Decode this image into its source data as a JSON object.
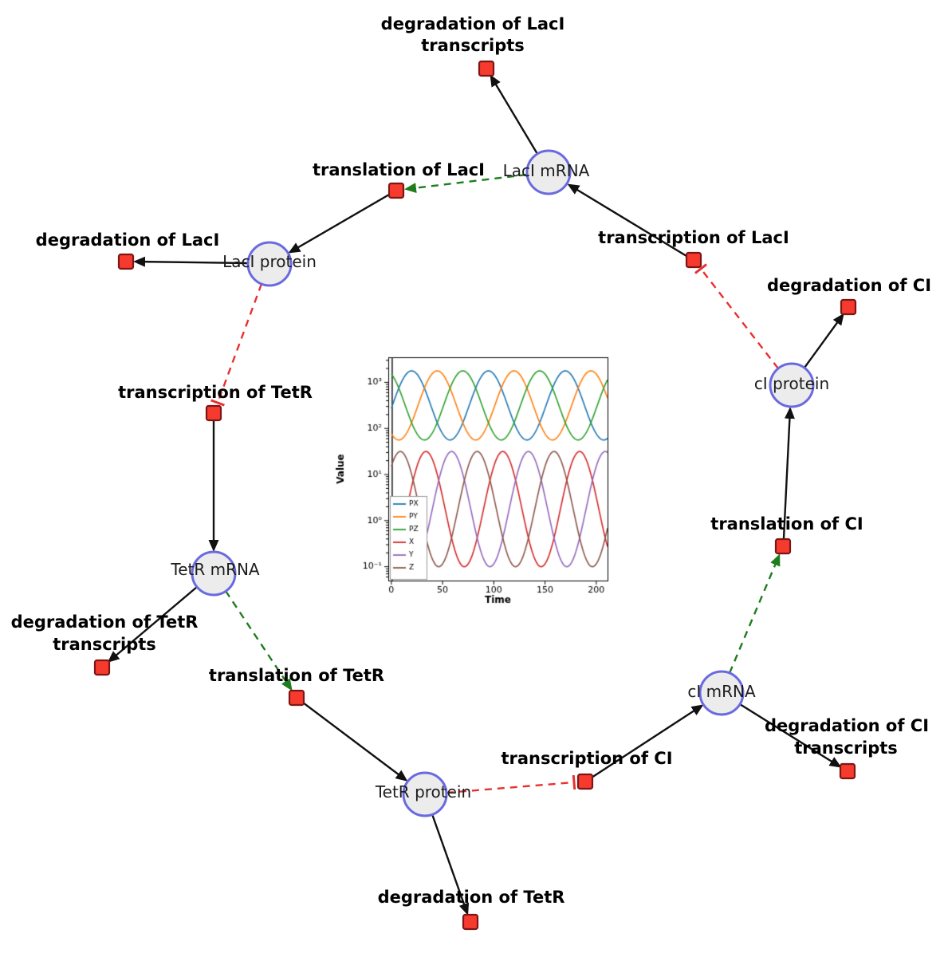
{
  "diagram": {
    "species": {
      "laci_mrna": {
        "label": "LacI mRNA"
      },
      "laci_protein": {
        "label": "LacI protein"
      },
      "tetr_mrna": {
        "label": "TetR mRNA"
      },
      "tetr_protein": {
        "label": "TetR protein"
      },
      "ci_mrna": {
        "label": "cI mRNA"
      },
      "ci_protein": {
        "label": "cI protein"
      }
    },
    "reactions": {
      "deg_laci_transcripts": {
        "line1": "degradation of LacI",
        "line2": "transcripts"
      },
      "translation_laci": {
        "line1": "translation of LacI"
      },
      "transcription_laci": {
        "line1": "transcription of LacI"
      },
      "deg_laci": {
        "line1": "degradation of LacI"
      },
      "transcription_tetr": {
        "line1": "transcription of TetR"
      },
      "deg_tetr_transcripts": {
        "line1": "degradation of TetR",
        "line2": "transcripts"
      },
      "translation_tetr": {
        "line1": "translation of TetR"
      },
      "deg_tetr": {
        "line1": "degradation of TetR"
      },
      "transcription_ci": {
        "line1": "transcription of CI"
      },
      "deg_ci_transcripts": {
        "line1": "degradation of CI",
        "line2": "transcripts"
      },
      "translation_ci": {
        "line1": "translation of CI"
      },
      "deg_ci": {
        "line1": "degradation of CI"
      }
    },
    "colors": {
      "species_fill": "#ececec",
      "species_stroke": "#6a6ae0",
      "reaction_fill": "#f63b2e",
      "reaction_stroke": "#7e1515",
      "edge_black": "#111111",
      "edge_modifier_green": "#1e7d1e",
      "edge_inhibition_red": "#e83030"
    }
  },
  "chart_data": {
    "type": "line",
    "title": "",
    "xlabel": "Time",
    "ylabel": "Value",
    "x_ticks": [
      0,
      50,
      100,
      150,
      200
    ],
    "x_tick_labels": [
      "0",
      "50",
      "100",
      "150",
      "200"
    ],
    "y_ticks": [
      0.1,
      1,
      10,
      100,
      1000
    ],
    "y_tick_labels": [
      "10⁻¹",
      "10⁰",
      "10¹",
      "10²",
      "10³"
    ],
    "y_scale": "log",
    "xlim": [
      -3,
      211
    ],
    "ylim": [
      0.05,
      3500
    ],
    "legend_position": "lower left",
    "grid": false,
    "oscillation_period": 75,
    "initial_spike_at_x": 0,
    "series": [
      {
        "name": "PX",
        "color": "#1f77b4",
        "log_center": 2.5,
        "log_amplitude": 0.75,
        "phase": 1,
        "peak": 1780,
        "trough": 56
      },
      {
        "name": "PY",
        "color": "#ff7f0e",
        "log_center": 2.5,
        "log_amplitude": 0.75,
        "phase": 26,
        "peak": 1780,
        "trough": 56
      },
      {
        "name": "PZ",
        "color": "#2ca02c",
        "log_center": 2.5,
        "log_amplitude": 0.75,
        "phase": 51,
        "peak": 1780,
        "trough": 56
      },
      {
        "name": "X",
        "color": "#d62728",
        "log_center": 0.25,
        "log_amplitude": 1.25,
        "phase": 90,
        "peak": 31.6,
        "trough": 0.1
      },
      {
        "name": "Y",
        "color": "#9467bd",
        "log_center": 0.25,
        "log_amplitude": 1.25,
        "phase": 40,
        "peak": 31.6,
        "trough": 0.1
      },
      {
        "name": "Z",
        "color": "#8c564b",
        "log_center": 0.25,
        "log_amplitude": 1.25,
        "phase": 65,
        "peak": 31.6,
        "trough": 0.1
      }
    ]
  }
}
